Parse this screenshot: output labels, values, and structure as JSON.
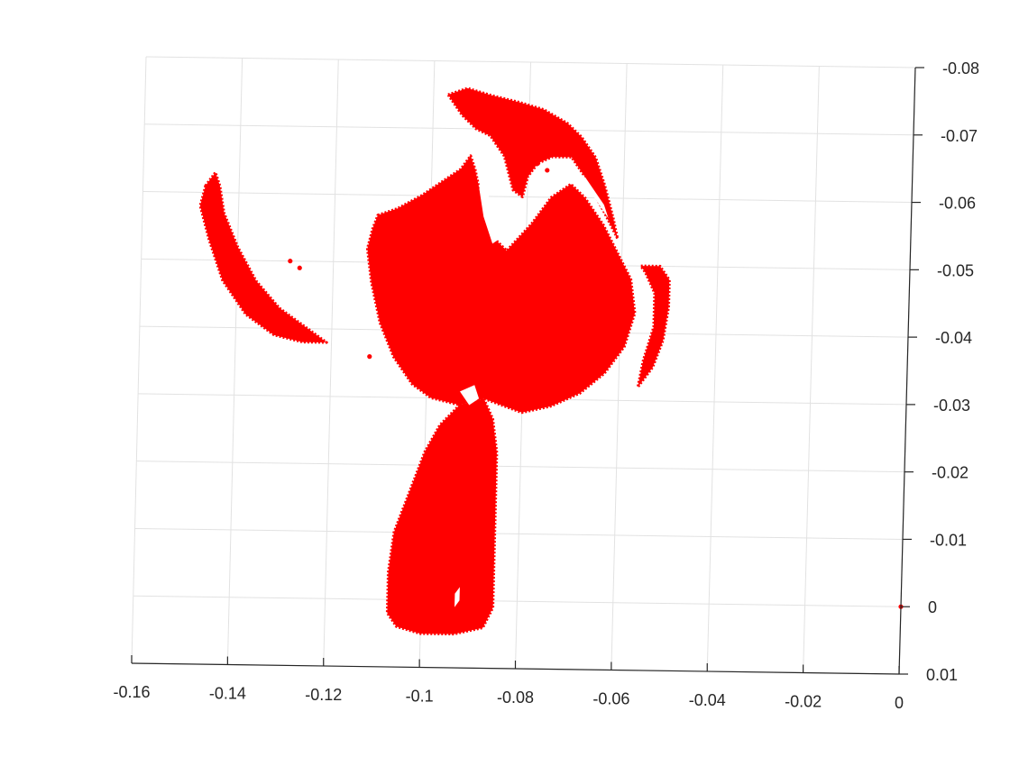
{
  "chart_data": {
    "type": "scatter",
    "title": "",
    "xlabel": "",
    "ylabel": "",
    "grid": true,
    "legend": "none",
    "view": "3d-top-rotated",
    "xlim": [
      -0.16,
      0
    ],
    "ylim": [
      -0.08,
      0.01
    ],
    "x_ticks": [
      -0.16,
      -0.14,
      -0.12,
      -0.1,
      -0.08,
      -0.06,
      -0.04,
      -0.02,
      0
    ],
    "x_tick_labels": [
      "-0.16",
      "-0.14",
      "-0.12",
      "-0.1",
      "-0.08",
      "-0.06",
      "-0.04",
      "-0.02",
      "0"
    ],
    "y_ticks": [
      -0.08,
      -0.07,
      -0.06,
      -0.05,
      -0.04,
      -0.03,
      -0.02,
      -0.01,
      0,
      0.01
    ],
    "y_tick_labels": [
      "-0.08",
      "-0.07",
      "-0.06",
      "-0.05",
      "-0.04",
      "-0.03",
      "-0.02",
      "-0.01",
      "0",
      "0.01"
    ],
    "series": [
      {
        "color": "#ff0000",
        "marker": "dot",
        "regions": [
          {
            "name": "main-body",
            "outline": [
              [
                -0.111,
                -0.057
              ],
              [
                -0.107,
                -0.058
              ],
              [
                -0.102,
                -0.06
              ],
              [
                -0.098,
                -0.062
              ],
              [
                -0.094,
                -0.064
              ],
              [
                -0.092,
                -0.066
              ],
              [
                -0.091,
                -0.064
              ],
              [
                -0.089,
                -0.058
              ],
              [
                -0.087,
                -0.054
              ],
              [
                -0.084,
                -0.052
              ],
              [
                -0.079,
                -0.056
              ],
              [
                -0.075,
                -0.06
              ],
              [
                -0.071,
                -0.062
              ],
              [
                -0.068,
                -0.06
              ],
              [
                -0.064,
                -0.056
              ],
              [
                -0.061,
                -0.052
              ],
              [
                -0.058,
                -0.048
              ],
              [
                -0.057,
                -0.043
              ],
              [
                -0.059,
                -0.038
              ],
              [
                -0.063,
                -0.034
              ],
              [
                -0.068,
                -0.031
              ],
              [
                -0.074,
                -0.029
              ],
              [
                -0.08,
                -0.028
              ],
              [
                -0.084,
                -0.029
              ],
              [
                -0.088,
                -0.03
              ],
              [
                -0.093,
                -0.029
              ],
              [
                -0.099,
                -0.03
              ],
              [
                -0.103,
                -0.032
              ],
              [
                -0.107,
                -0.036
              ],
              [
                -0.11,
                -0.041
              ],
              [
                -0.112,
                -0.047
              ],
              [
                -0.113,
                -0.052
              ],
              [
                -0.112,
                -0.055
              ]
            ]
          },
          {
            "name": "stem",
            "outline": [
              [
                -0.093,
                -0.029
              ],
              [
                -0.097,
                -0.026
              ],
              [
                -0.1,
                -0.022
              ],
              [
                -0.103,
                -0.016
              ],
              [
                -0.106,
                -0.01
              ],
              [
                -0.107,
                -0.004
              ],
              [
                -0.107,
                0.002
              ],
              [
                -0.105,
                0.004
              ],
              [
                -0.1,
                0.005
              ],
              [
                -0.093,
                0.005
              ],
              [
                -0.087,
                0.004
              ],
              [
                -0.085,
                0.001
              ],
              [
                -0.085,
                -0.006
              ],
              [
                -0.085,
                -0.015
              ],
              [
                -0.085,
                -0.022
              ],
              [
                -0.086,
                -0.027
              ],
              [
                -0.088,
                -0.03
              ]
            ]
          },
          {
            "name": "top-horn",
            "outline": [
              [
                -0.097,
                -0.075
              ],
              [
                -0.093,
                -0.076
              ],
              [
                -0.088,
                -0.075
              ],
              [
                -0.082,
                -0.074
              ],
              [
                -0.077,
                -0.073
              ],
              [
                -0.072,
                -0.071
              ],
              [
                -0.069,
                -0.069
              ],
              [
                -0.066,
                -0.066
              ],
              [
                -0.064,
                -0.062
              ],
              [
                -0.062,
                -0.057
              ],
              [
                -0.061,
                -0.054
              ],
              [
                -0.064,
                -0.058
              ],
              [
                -0.068,
                -0.063
              ],
              [
                -0.071,
                -0.066
              ],
              [
                -0.075,
                -0.066
              ],
              [
                -0.078,
                -0.065
              ],
              [
                -0.08,
                -0.063
              ],
              [
                -0.081,
                -0.06
              ],
              [
                -0.083,
                -0.061
              ],
              [
                -0.085,
                -0.066
              ],
              [
                -0.088,
                -0.069
              ],
              [
                -0.091,
                -0.07
              ],
              [
                -0.094,
                -0.072
              ]
            ]
          },
          {
            "name": "left-crescent",
            "outline": [
              [
                -0.147,
                -0.061
              ],
              [
                -0.145,
                -0.063
              ],
              [
                -0.144,
                -0.061
              ],
              [
                -0.143,
                -0.057
              ],
              [
                -0.14,
                -0.052
              ],
              [
                -0.136,
                -0.047
              ],
              [
                -0.131,
                -0.043
              ],
              [
                -0.125,
                -0.04
              ],
              [
                -0.121,
                -0.038
              ],
              [
                -0.126,
                -0.038
              ],
              [
                -0.132,
                -0.039
              ],
              [
                -0.138,
                -0.042
              ],
              [
                -0.143,
                -0.047
              ],
              [
                -0.146,
                -0.053
              ],
              [
                -0.148,
                -0.058
              ]
            ]
          },
          {
            "name": "right-crescent",
            "outline": [
              [
                -0.056,
                -0.05
              ],
              [
                -0.052,
                -0.05
              ],
              [
                -0.05,
                -0.048
              ],
              [
                -0.05,
                -0.044
              ],
              [
                -0.051,
                -0.039
              ],
              [
                -0.053,
                -0.035
              ],
              [
                -0.056,
                -0.032
              ],
              [
                -0.055,
                -0.036
              ],
              [
                -0.053,
                -0.041
              ],
              [
                -0.053,
                -0.046
              ],
              [
                -0.055,
                -0.049
              ]
            ]
          }
        ],
        "points": [
          [
            0,
            0
          ],
          [
            -0.127,
            -0.049
          ],
          [
            -0.129,
            -0.05
          ],
          [
            -0.112,
            -0.036
          ],
          [
            -0.076,
            -0.064
          ],
          [
            -0.078,
            -0.065
          ]
        ]
      }
    ]
  }
}
